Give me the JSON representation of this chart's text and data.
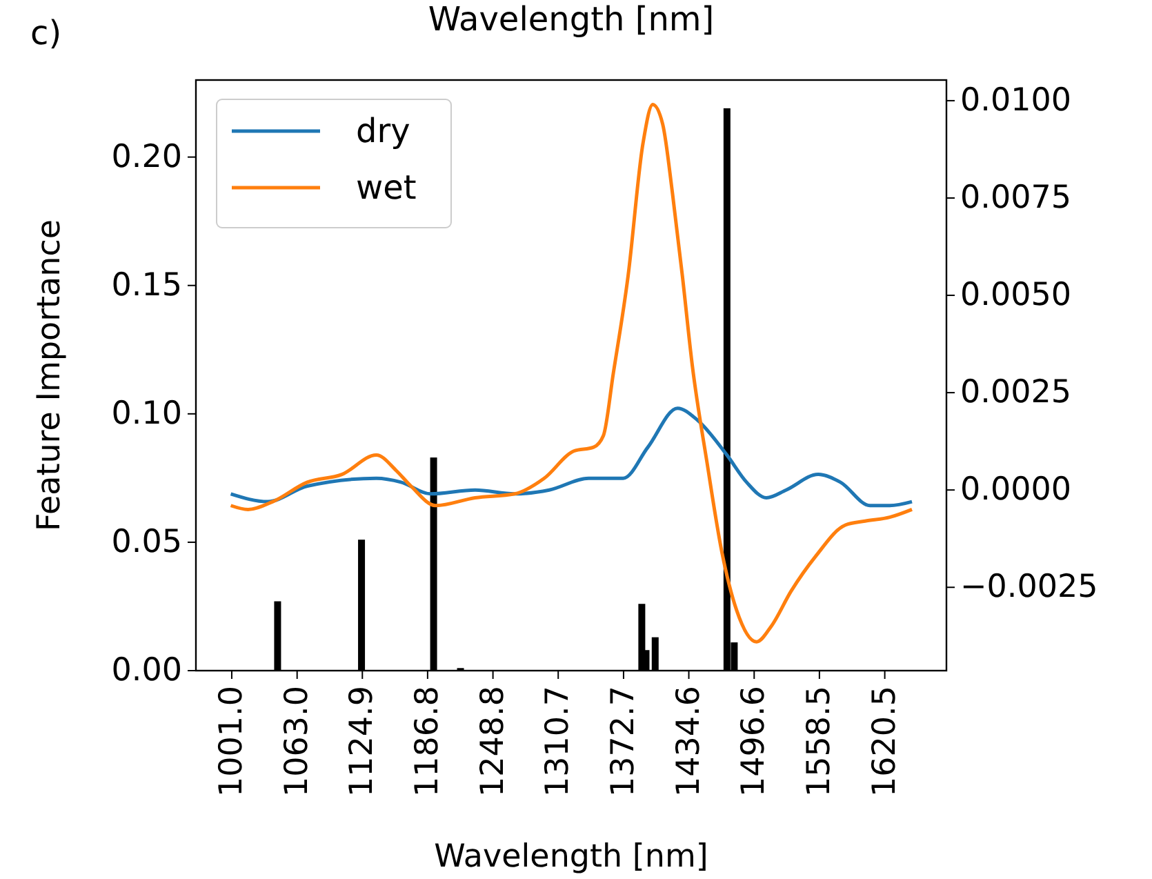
{
  "chart_data": {
    "type": "bar",
    "xlabel": "Wavelength [nm]",
    "ylabel": "Feature Importance",
    "annotations": [
      "c)",
      "Wavelength [nm]"
    ],
    "xlim": [
      967,
      1679
    ],
    "xticks": [
      {
        "value": 1001.0,
        "label": "1001.0"
      },
      {
        "value": 1063.0,
        "label": "1063.0"
      },
      {
        "value": 1124.9,
        "label": "1124.9"
      },
      {
        "value": 1186.8,
        "label": "1186.8"
      },
      {
        "value": 1248.8,
        "label": "1248.8"
      },
      {
        "value": 1310.7,
        "label": "1310.7"
      },
      {
        "value": 1372.7,
        "label": "1372.7"
      },
      {
        "value": 1434.6,
        "label": "1434.6"
      },
      {
        "value": 1496.6,
        "label": "1496.6"
      },
      {
        "value": 1558.5,
        "label": "1558.5"
      },
      {
        "value": 1620.5,
        "label": "1620.5"
      }
    ],
    "ylim": [
      0,
      0.23
    ],
    "yticks": [
      {
        "value": 0,
        "label": "0.00"
      },
      {
        "value": 0.05,
        "label": "0.05"
      },
      {
        "value": 0.1,
        "label": "0.10"
      },
      {
        "value": 0.15,
        "label": "0.15"
      },
      {
        "value": 0.2,
        "label": "0.20"
      }
    ],
    "y2lim": [
      -0.00464,
      0.01053
    ],
    "y2ticks": [
      {
        "value": -0.0025,
        "label": "−0.0025"
      },
      {
        "value": 0,
        "label": "0.0000"
      },
      {
        "value": 0.0025,
        "label": "0.0025"
      },
      {
        "value": 0.005,
        "label": "0.0050"
      },
      {
        "value": 0.0075,
        "label": "0.0075"
      },
      {
        "value": 0.01,
        "label": "0.0100"
      }
    ],
    "legend": "top left",
    "series": [
      {
        "color": "#000000",
        "x": [
          1044.5,
          1124.1,
          1192.5,
          1218.0,
          1390.0,
          1394.0,
          1402.7,
          1470.8,
          1477.7
        ],
        "values": [
          0.027,
          0.051,
          0.083,
          0.001,
          0.026,
          0.008,
          0.013,
          0.219,
          0.011
        ]
      },
      {
        "type": "line",
        "name": "dry",
        "color": "#1f77b4",
        "axis": "y2",
        "x": [
          1000.1,
          1035.2,
          1072.7,
          1138.2,
          1161.6,
          1189.7,
          1231.9,
          1269.3,
          1302.1,
          1339.6,
          1372.4,
          1395.8,
          1423.9,
          1442.6,
          1470.7,
          1489.4,
          1508.2,
          1526.9,
          1557.3,
          1578.4,
          1606.5,
          1625.2,
          1646.3
        ],
        "values": [
          -0.0001,
          -0.0003,
          0.0001,
          0.0003,
          0.0002,
          -0.0001,
          0,
          -0.0001,
          0,
          0.0003,
          0.0003,
          0.0011,
          0.0021,
          0.0018,
          0.0009,
          0.0002,
          -0.0002,
          0,
          0.0004,
          0.0002,
          -0.0004,
          -0.0004,
          -0.0003
        ]
      },
      {
        "type": "line",
        "name": "wet",
        "color": "#ff7f0e",
        "axis": "y2",
        "x": [
          1000.1,
          1016.5,
          1039.9,
          1072.7,
          1105.5,
          1138.2,
          1157.0,
          1171.0,
          1194.4,
          1231.9,
          1269.3,
          1297.4,
          1325.5,
          1344.3,
          1353.6,
          1363.0,
          1377.0,
          1391.1,
          1400.4,
          1409.8,
          1419.2,
          1428.5,
          1437.9,
          1451.9,
          1466.0,
          1480.1,
          1498.8,
          1512.8,
          1531.6,
          1555.0,
          1583.1,
          1601.8,
          1625.2,
          1646.3
        ],
        "values": [
          -0.0004,
          -0.0005,
          -0.0003,
          0.0002,
          0.0004,
          0.0009,
          0.0005,
          0.0001,
          -0.0004,
          -0.0002,
          -0.0001,
          0.0003,
          0.001,
          0.0011,
          0.0014,
          0.003,
          0.0055,
          0.0089,
          0.0099,
          0.0094,
          0.0076,
          0.0055,
          0.0032,
          0.0007,
          -0.0016,
          -0.0031,
          -0.0039,
          -0.0035,
          -0.0026,
          -0.0017,
          -0.0009,
          -0.0008,
          -0.0007,
          -0.0005
        ]
      }
    ]
  }
}
